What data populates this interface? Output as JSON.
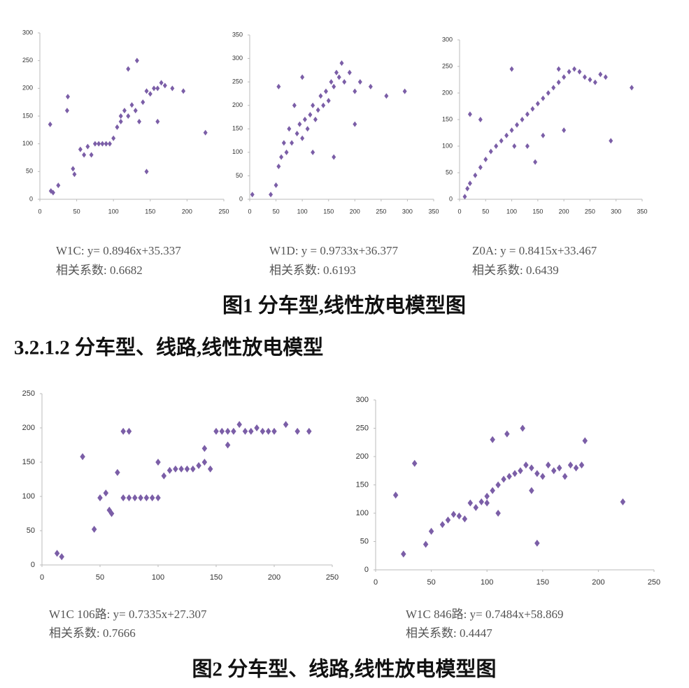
{
  "chart_data": [
    {
      "type": "scatter",
      "color": "#7b5ea7",
      "x": [
        15,
        18,
        25,
        14,
        38,
        37,
        45,
        47,
        55,
        60,
        65,
        70,
        75,
        80,
        85,
        90,
        95,
        100,
        105,
        110,
        115,
        120,
        125,
        130,
        135,
        140,
        145,
        150,
        155,
        160,
        165,
        170,
        180,
        195,
        225,
        120,
        132,
        145,
        110,
        160
      ],
      "values": [
        15,
        12,
        25,
        135,
        185,
        160,
        55,
        45,
        90,
        80,
        95,
        80,
        100,
        100,
        100,
        100,
        100,
        110,
        130,
        150,
        160,
        150,
        170,
        160,
        140,
        175,
        195,
        190,
        200,
        200,
        210,
        205,
        200,
        195,
        120,
        235,
        250,
        50,
        140,
        140
      ],
      "xlim": [
        0,
        250
      ],
      "xticks": [
        0,
        50,
        100,
        150,
        200,
        250
      ],
      "ylim": [
        0,
        300
      ],
      "yticks": [
        0,
        50,
        100,
        150,
        200,
        250,
        300
      ],
      "annotations": [
        "W1C: y= 0.8946x+35.337",
        "相关系数: 0.6682"
      ]
    },
    {
      "type": "scatter",
      "color": "#7b5ea7",
      "x": [
        5,
        40,
        50,
        55,
        60,
        65,
        70,
        75,
        80,
        90,
        95,
        100,
        105,
        110,
        115,
        120,
        125,
        130,
        135,
        140,
        145,
        150,
        155,
        160,
        165,
        170,
        175,
        180,
        190,
        200,
        210,
        230,
        260,
        295,
        55,
        100,
        160,
        200,
        120,
        85
      ],
      "values": [
        10,
        10,
        30,
        70,
        90,
        120,
        100,
        150,
        120,
        140,
        160,
        130,
        170,
        150,
        180,
        200,
        170,
        190,
        220,
        200,
        230,
        210,
        250,
        240,
        270,
        260,
        290,
        250,
        270,
        230,
        250,
        240,
        220,
        230,
        240,
        260,
        90,
        160,
        100,
        200
      ],
      "xlim": [
        0,
        350
      ],
      "xticks": [
        0,
        50,
        100,
        150,
        200,
        250,
        300,
        350
      ],
      "ylim": [
        0,
        350
      ],
      "yticks": [
        0,
        50,
        100,
        150,
        200,
        250,
        300,
        350
      ],
      "annotations": [
        "W1D: y = 0.9733x+36.377",
        "相关系数: 0.6193"
      ]
    },
    {
      "type": "scatter",
      "color": "#7b5ea7",
      "x": [
        10,
        15,
        20,
        30,
        40,
        50,
        60,
        70,
        80,
        90,
        100,
        110,
        120,
        130,
        140,
        150,
        160,
        170,
        180,
        190,
        200,
        210,
        220,
        230,
        240,
        250,
        260,
        270,
        290,
        330,
        20,
        40,
        105,
        145,
        160,
        280,
        200,
        100,
        130,
        190
      ],
      "values": [
        5,
        20,
        30,
        45,
        60,
        75,
        90,
        100,
        110,
        120,
        130,
        140,
        150,
        160,
        170,
        180,
        190,
        200,
        210,
        220,
        230,
        240,
        245,
        240,
        230,
        225,
        220,
        235,
        110,
        210,
        160,
        150,
        100,
        70,
        120,
        230,
        130,
        245,
        100,
        245
      ],
      "xlim": [
        0,
        350
      ],
      "xticks": [
        0,
        50,
        100,
        150,
        200,
        250,
        300,
        350
      ],
      "ylim": [
        0,
        300
      ],
      "yticks": [
        0,
        50,
        100,
        150,
        200,
        250,
        300
      ],
      "annotations": [
        "Z0A: y = 0.8415x+33.467",
        "相关系数: 0.6439"
      ]
    },
    {
      "type": "scatter",
      "color": "#7b5ea7",
      "x": [
        13,
        17,
        35,
        45,
        50,
        55,
        58,
        60,
        65,
        70,
        75,
        80,
        85,
        90,
        95,
        100,
        105,
        110,
        115,
        120,
        125,
        130,
        135,
        140,
        145,
        150,
        155,
        160,
        165,
        170,
        175,
        180,
        185,
        190,
        195,
        200,
        210,
        220,
        230,
        70,
        75,
        100,
        140,
        160
      ],
      "values": [
        17,
        12,
        158,
        52,
        98,
        105,
        80,
        75,
        135,
        98,
        98,
        98,
        98,
        98,
        98,
        98,
        130,
        138,
        140,
        140,
        140,
        140,
        145,
        150,
        140,
        195,
        195,
        195,
        195,
        205,
        195,
        195,
        200,
        195,
        195,
        195,
        205,
        195,
        195,
        195,
        195,
        150,
        170,
        175
      ],
      "xlim": [
        0,
        250
      ],
      "xticks": [
        0,
        50,
        100,
        150,
        200,
        250
      ],
      "ylim": [
        0,
        250
      ],
      "yticks": [
        0,
        50,
        100,
        150,
        200,
        250
      ],
      "annotations": [
        "W1C 106路: y= 0.7335x+27.307",
        "相关系数: 0.7666"
      ]
    },
    {
      "type": "scatter",
      "color": "#7b5ea7",
      "x": [
        18,
        25,
        35,
        45,
        50,
        60,
        65,
        70,
        75,
        80,
        85,
        90,
        95,
        100,
        105,
        110,
        115,
        120,
        125,
        130,
        135,
        140,
        145,
        150,
        155,
        160,
        165,
        170,
        175,
        180,
        185,
        188,
        222,
        105,
        118,
        132,
        145,
        100,
        110,
        140
      ],
      "values": [
        132,
        28,
        188,
        45,
        68,
        80,
        88,
        98,
        95,
        90,
        118,
        110,
        120,
        130,
        140,
        150,
        160,
        165,
        170,
        175,
        185,
        180,
        170,
        165,
        185,
        175,
        180,
        165,
        185,
        180,
        185,
        228,
        120,
        230,
        240,
        250,
        47,
        118,
        100,
        140
      ],
      "xlim": [
        0,
        250
      ],
      "xticks": [
        0,
        50,
        100,
        150,
        200,
        250
      ],
      "ylim": [
        0,
        300
      ],
      "yticks": [
        0,
        50,
        100,
        150,
        200,
        250,
        300
      ],
      "annotations": [
        "W1C 846路: y= 0.7484x+58.869",
        "相关系数: 0.4447"
      ]
    }
  ],
  "figures": [
    {
      "caption": "图1  分车型,线性放电模型图"
    },
    {
      "caption": "图2   分车型、线路,线性放电模型图"
    }
  ],
  "section_heading": "3.2.1.2 分车型、线路,线性放电模型"
}
